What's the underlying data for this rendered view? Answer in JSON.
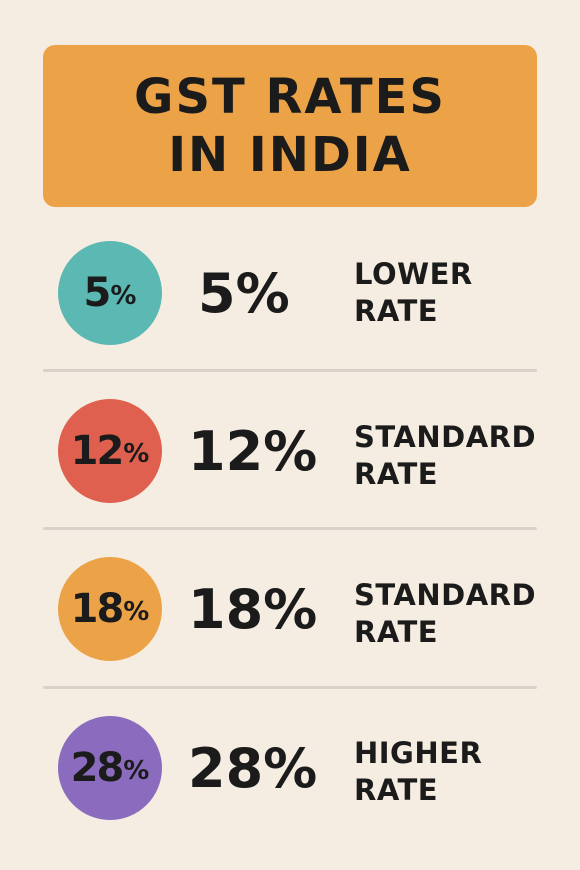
{
  "title": {
    "line1": "GST RATES",
    "line2": "IN INDIA"
  },
  "rates": [
    {
      "badge_number": "5",
      "badge_percent": "%",
      "value": "5%",
      "label_line1": "LOWER",
      "label_line2": "RATE",
      "color": "#5bb8b2"
    },
    {
      "badge_number": "12",
      "badge_percent": "%",
      "value": "12%",
      "label_line1": "STANDARD",
      "label_line2": "RATE",
      "color": "#e0604f"
    },
    {
      "badge_number": "18",
      "badge_percent": "%",
      "value": "18%",
      "label_line1": "STANDARD",
      "label_line2": "RATE",
      "color": "#eca348"
    },
    {
      "badge_number": "28",
      "badge_percent": "%",
      "value": "28%",
      "label_line1": "HIGHER",
      "label_line2": "RATE",
      "color": "#8a6bbd"
    }
  ]
}
